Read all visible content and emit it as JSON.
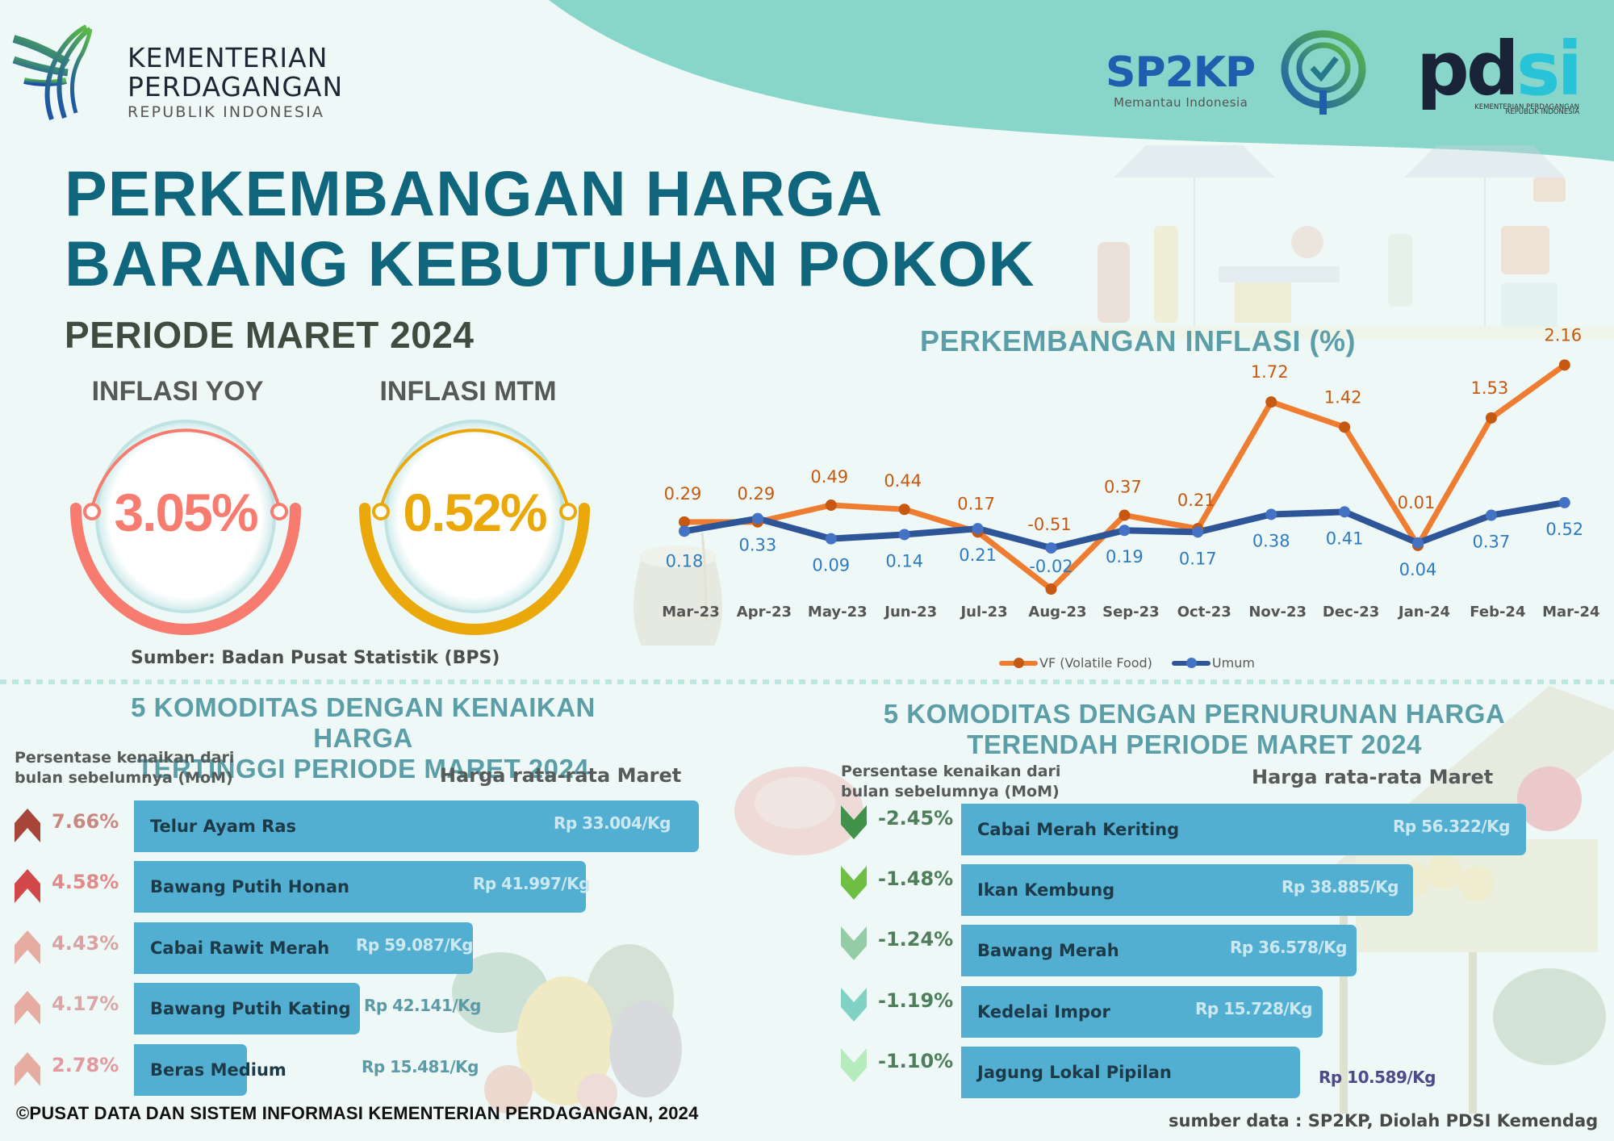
{
  "header": {
    "ministry_logo": {
      "line1": "KEMENTERIAN",
      "line2": "PERDAGANGAN",
      "line3": "REPUBLIK INDONESIA"
    },
    "sp2kp_logo": {
      "title": "SP2KP",
      "tagline": "Memantau Indonesia"
    },
    "pdsi_logo": {
      "text_dark": "pd",
      "text_accent": "si",
      "line1": "KEMENTERIAN PERDAGANGAN",
      "line2": "REPUBLIK INDONESIA"
    }
  },
  "title": {
    "line1": "PERKEMBANGAN HARGA",
    "line2": "BARANG KEBUTUHAN POKOK",
    "period": "PERIODE MARET 2024"
  },
  "kpis": [
    {
      "label": "INFLASI YOY",
      "value": "3.05%",
      "color": "#f77b6e"
    },
    {
      "label": "INFLASI MTM",
      "value": "0.52%",
      "color": "#eaa80a"
    }
  ],
  "kpi_source": "Sumber: Badan Pusat Statistik (BPS)",
  "colors": {
    "title": "#10667c",
    "section_title": "#5b9ea8",
    "bar": "#52afd1",
    "vf_line": "#ef7d31",
    "vf_marker": "#c65811",
    "umum_line": "#2e5597",
    "umum_marker": "#4472c4",
    "band": "#88d5c9"
  },
  "chart_data": {
    "type": "line",
    "title": "PERKEMBANGAN INFLASI (%)",
    "xlabel": "",
    "ylabel": "",
    "x": [
      "Mar-23",
      "Apr-23",
      "May-23",
      "Jun-23",
      "Jul-23",
      "Aug-23",
      "Sep-23",
      "Oct-23",
      "Nov-23",
      "Dec-23",
      "Jan-24",
      "Feb-24",
      "Mar-24"
    ],
    "series": [
      {
        "name": "VF (Volatile Food)",
        "values": [
          0.29,
          0.29,
          0.49,
          0.44,
          0.17,
          -0.51,
          0.37,
          0.21,
          1.72,
          1.42,
          0.01,
          1.53,
          2.16
        ],
        "color": "#ef7d31"
      },
      {
        "name": "Umum",
        "values": [
          0.18,
          0.33,
          0.09,
          0.14,
          0.21,
          -0.02,
          0.19,
          0.17,
          0.38,
          0.41,
          0.04,
          0.37,
          0.52
        ],
        "color": "#2e5597"
      }
    ],
    "grid": false,
    "legend_position": "bottom",
    "data_labels": true
  },
  "increase_section": {
    "title_line1": "5 KOMODITAS DENGAN KENAIKAN HARGA",
    "title_line2": "TERTINGGI PERIODE MARET 2024",
    "pct_header_line1": "Persentase kenaikan dari",
    "pct_header_line2": "bulan sebelumnya (MoM)",
    "price_header": "Harga rata-rata Maret",
    "items": [
      {
        "name": "Telur Ayam Ras",
        "pct": "7.66%",
        "price": "Rp 33.004/Kg",
        "arrow_color": "#a8453a",
        "pct_color": "#c98782"
      },
      {
        "name": "Bawang Putih Honan",
        "pct": "4.58%",
        "price": "Rp 41.997/Kg",
        "arrow_color": "#d2474a",
        "pct_color": "#e08a8a"
      },
      {
        "name": "Cabai Rawit Merah",
        "pct": "4.43%",
        "price": "Rp 59.087/Kg",
        "arrow_color": "#e6aca2",
        "pct_color": "#d9a3a4"
      },
      {
        "name": "Bawang Putih Kating",
        "pct": "4.17%",
        "price": "Rp 42.141/Kg",
        "arrow_color": "#e6aca2",
        "pct_color": "#dba6a8"
      },
      {
        "name": "Beras Medium",
        "pct": "2.78%",
        "price": "Rp 15.481/Kg",
        "arrow_color": "#e6aca2",
        "pct_color": "#e3999e"
      }
    ]
  },
  "decrease_section": {
    "title_line1": "5 KOMODITAS DENGAN PERNURUNAN HARGA",
    "title_line2": "TERENDAH PERIODE MARET 2024",
    "pct_header_line1": "Persentase kenaikan dari",
    "pct_header_line2": "bulan sebelumnya (MoM)",
    "price_header": "Harga rata-rata Maret",
    "items": [
      {
        "name": "Cabai Merah Keriting",
        "pct": "-2.45%",
        "price": "Rp 56.322/Kg",
        "arrow_color": "#41924a"
      },
      {
        "name": "Ikan Kembung",
        "pct": "-1.48%",
        "price": "Rp 38.885/Kg",
        "arrow_color": "#6fbf45"
      },
      {
        "name": "Bawang Merah",
        "pct": "-1.24%",
        "price": "Rp 36.578/Kg",
        "arrow_color": "#94cda5"
      },
      {
        "name": "Kedelai Impor",
        "pct": "-1.19%",
        "price": "Rp 15.728/Kg",
        "arrow_color": "#80d2c4"
      },
      {
        "name": "Jagung Lokal Pipilan",
        "pct": "-1.10%",
        "price": "Rp 10.589/Kg",
        "arrow_color": "#b6ecbc"
      }
    ]
  },
  "footer": {
    "copyright": "©PUSAT DATA DAN SISTEM INFORMASI KEMENTERIAN PERDAGANGAN, 2024",
    "data_source": "sumber data : SP2KP, Diolah PDSI Kemendag"
  }
}
